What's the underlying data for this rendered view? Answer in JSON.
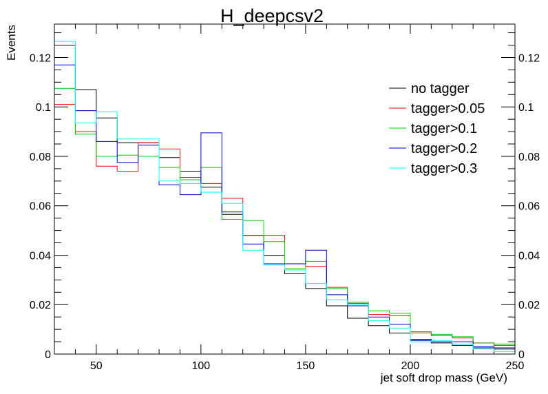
{
  "chart_data": {
    "type": "line",
    "title": "H_deepcsv2",
    "xlabel": "jet soft drop mass (GeV)",
    "ylabel": "Events",
    "xlim": [
      30,
      250
    ],
    "ylim": [
      0,
      0.1335
    ],
    "bin_edges": [
      30,
      40,
      50,
      60,
      70,
      80,
      90,
      100,
      110,
      120,
      130,
      140,
      150,
      160,
      170,
      180,
      190,
      200,
      210,
      220,
      230,
      240,
      250
    ],
    "x_ticks": [
      50,
      100,
      150,
      200,
      250
    ],
    "x_tick_labels": [
      "50",
      "100",
      "150",
      "200",
      "250"
    ],
    "y_ticks": [
      0,
      0.02,
      0.04,
      0.06,
      0.08,
      0.1,
      0.12
    ],
    "y_tick_labels": [
      "0",
      "0.02",
      "0.04",
      "0.06",
      "0.08",
      "0.1",
      "0.12"
    ],
    "legend_position": "top-right",
    "series": [
      {
        "name": "no tagger",
        "color": "#000000",
        "values": [
          0.125,
          0.107,
          0.0955,
          0.0855,
          0.0855,
          0.0795,
          0.074,
          0.0675,
          0.0565,
          0.048,
          0.04,
          0.0325,
          0.0265,
          0.0195,
          0.0145,
          0.0115,
          0.0085,
          0.006,
          0.0045,
          0.0035,
          0.0025,
          0.002
        ]
      },
      {
        "name": "tagger>0.05",
        "color": "#ff0000",
        "values": [
          0.101,
          0.09,
          0.076,
          0.074,
          0.0855,
          0.083,
          0.0715,
          0.069,
          0.063,
          0.048,
          0.048,
          0.0365,
          0.0355,
          0.027,
          0.0205,
          0.016,
          0.0155,
          0.009,
          0.0075,
          0.0065,
          0.0045,
          0.0035
        ]
      },
      {
        "name": "tagger>0.1",
        "color": "#00cc00",
        "values": [
          0.1075,
          0.089,
          0.08,
          0.0805,
          0.08,
          0.0755,
          0.0705,
          0.0755,
          0.0545,
          0.054,
          0.0455,
          0.0345,
          0.0375,
          0.0265,
          0.021,
          0.0175,
          0.0165,
          0.0085,
          0.008,
          0.007,
          0.0045,
          0.004
        ]
      },
      {
        "name": "tagger>0.2",
        "color": "#0000cc",
        "values": [
          0.117,
          0.0985,
          0.086,
          0.0775,
          0.0845,
          0.0685,
          0.0645,
          0.0895,
          0.0575,
          0.0445,
          0.0365,
          0.0365,
          0.042,
          0.024,
          0.0195,
          0.015,
          0.012,
          0.0055,
          0.005,
          0.005,
          0.003,
          0.0025
        ]
      },
      {
        "name": "tagger>0.3",
        "color": "#00ffff",
        "values": [
          0.1265,
          0.0935,
          0.098,
          0.087,
          0.087,
          0.07,
          0.069,
          0.0655,
          0.061,
          0.042,
          0.036,
          0.034,
          0.0285,
          0.022,
          0.02,
          0.0135,
          0.0105,
          0.005,
          0.0055,
          0.004,
          0.002,
          0.001
        ]
      }
    ]
  }
}
